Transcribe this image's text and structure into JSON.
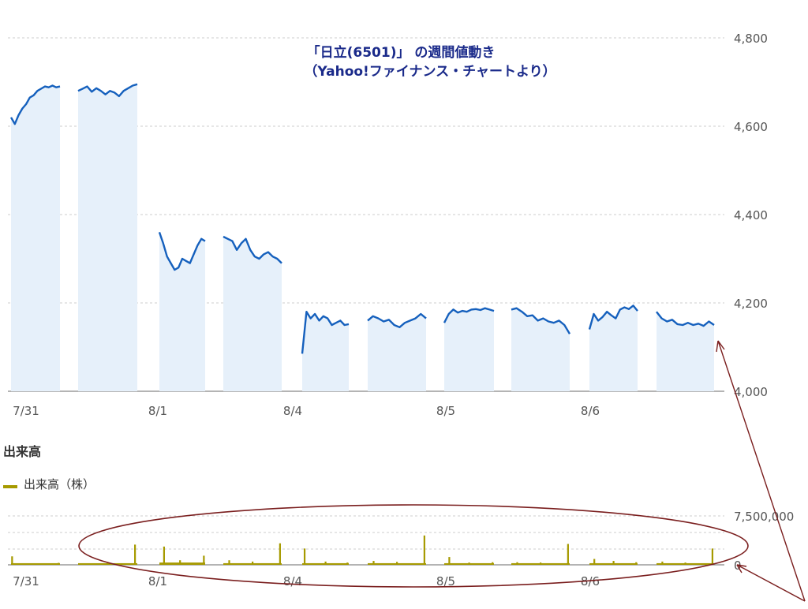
{
  "chart_data": [
    {
      "type": "line",
      "title": "「日立(6501)」 の週間値動き",
      "subtitle": "（Yahoo!ファイナンス・チャートより）",
      "ylim": [
        4000,
        4800
      ],
      "y_ticks": [
        "4,800",
        "4,600",
        "4,400",
        "4,200",
        "4,000"
      ],
      "y_tick_values": [
        4800,
        4600,
        4400,
        4200,
        4000
      ],
      "x_ticks": [
        "7/31",
        "8/1",
        "8/4",
        "8/5",
        "8/6"
      ],
      "grid": "horizontal-dashed",
      "colors": {
        "line": "#1560bd",
        "fill": "#e6f0fa",
        "grid": "#cccccc"
      },
      "sessions": [
        {
          "values": [
            4620,
            4605,
            4625,
            4640,
            4650,
            4665,
            4670,
            4680,
            4685,
            4690,
            4688,
            4692,
            4688,
            4690
          ]
        },
        {
          "values": [
            4680,
            4685,
            4690,
            4678,
            4686,
            4680,
            4672,
            4680,
            4676,
            4668,
            4680,
            4686,
            4692,
            4695
          ]
        },
        {
          "values": [
            4360,
            4335,
            4305,
            4290,
            4275,
            4280,
            4300,
            4295,
            4290,
            4310,
            4330,
            4345,
            4340
          ]
        },
        {
          "values": [
            4350,
            4345,
            4340,
            4320,
            4335,
            4345,
            4320,
            4305,
            4300,
            4310,
            4315,
            4305,
            4300,
            4290
          ]
        },
        {
          "values": [
            4085,
            4180,
            4165,
            4175,
            4160,
            4170,
            4165,
            4150,
            4155,
            4160,
            4150,
            4152
          ]
        },
        {
          "values": [
            4160,
            4170,
            4165,
            4158,
            4162,
            4150,
            4145,
            4155,
            4160,
            4165,
            4175,
            4165
          ]
        },
        {
          "values": [
            4155,
            4175,
            4185,
            4178,
            4182,
            4180,
            4185,
            4186,
            4184,
            4188,
            4185,
            4182
          ]
        },
        {
          "values": [
            4185,
            4188,
            4180,
            4170,
            4172,
            4160,
            4165,
            4158,
            4155,
            4160,
            4150,
            4130
          ]
        },
        {
          "values": [
            4140,
            4175,
            4160,
            4168,
            4180,
            4172,
            4165,
            4185,
            4190,
            4186,
            4194,
            4182
          ]
        },
        {
          "values": [
            4180,
            4165,
            4158,
            4162,
            4152,
            4150,
            4155,
            4150,
            4153,
            4148,
            4158,
            4150
          ]
        }
      ]
    },
    {
      "type": "bar",
      "title": "出来高",
      "legend": "出来高（株）",
      "ylim": [
        0,
        7500000
      ],
      "y_ticks": [
        "7,500,000",
        "0"
      ],
      "y_tick_values": [
        7500000,
        0
      ],
      "x_ticks": [
        "7/31",
        "8/1",
        "8/4",
        "8/5",
        "8/6"
      ],
      "grid": "horizontal-dashed",
      "colors": {
        "bar": "#a69a00",
        "grid": "#cccccc"
      },
      "sessions": [
        {
          "base": 250000,
          "spikes": [
            [
              0.02,
              1300000
            ],
            [
              0.97,
              300000
            ]
          ]
        },
        {
          "base": 250000,
          "spikes": [
            [
              0.5,
              350000
            ],
            [
              0.96,
              3100000
            ]
          ]
        },
        {
          "base": 350000,
          "spikes": [
            [
              0.1,
              2800000
            ],
            [
              0.45,
              700000
            ],
            [
              0.97,
              1400000
            ]
          ]
        },
        {
          "base": 250000,
          "spikes": [
            [
              0.1,
              700000
            ],
            [
              0.5,
              500000
            ],
            [
              0.97,
              3300000
            ]
          ]
        },
        {
          "base": 250000,
          "spikes": [
            [
              0.05,
              2500000
            ],
            [
              0.5,
              500000
            ],
            [
              0.97,
              350000
            ]
          ]
        },
        {
          "base": 250000,
          "spikes": [
            [
              0.1,
              600000
            ],
            [
              0.5,
              450000
            ],
            [
              0.97,
              4500000
            ]
          ]
        },
        {
          "base": 250000,
          "spikes": [
            [
              0.1,
              1200000
            ],
            [
              0.5,
              350000
            ],
            [
              0.97,
              400000
            ]
          ]
        },
        {
          "base": 250000,
          "spikes": [
            [
              0.1,
              400000
            ],
            [
              0.5,
              350000
            ],
            [
              0.97,
              3200000
            ]
          ]
        },
        {
          "base": 250000,
          "spikes": [
            [
              0.1,
              900000
            ],
            [
              0.5,
              600000
            ],
            [
              0.97,
              400000
            ]
          ]
        },
        {
          "base": 250000,
          "spikes": [
            [
              0.1,
              500000
            ],
            [
              0.5,
              350000
            ],
            [
              0.97,
              2500000
            ]
          ]
        }
      ]
    }
  ],
  "annotation": {
    "ellipse_color": "#7a1e1e",
    "arrow_color": "#7a1e1e"
  }
}
